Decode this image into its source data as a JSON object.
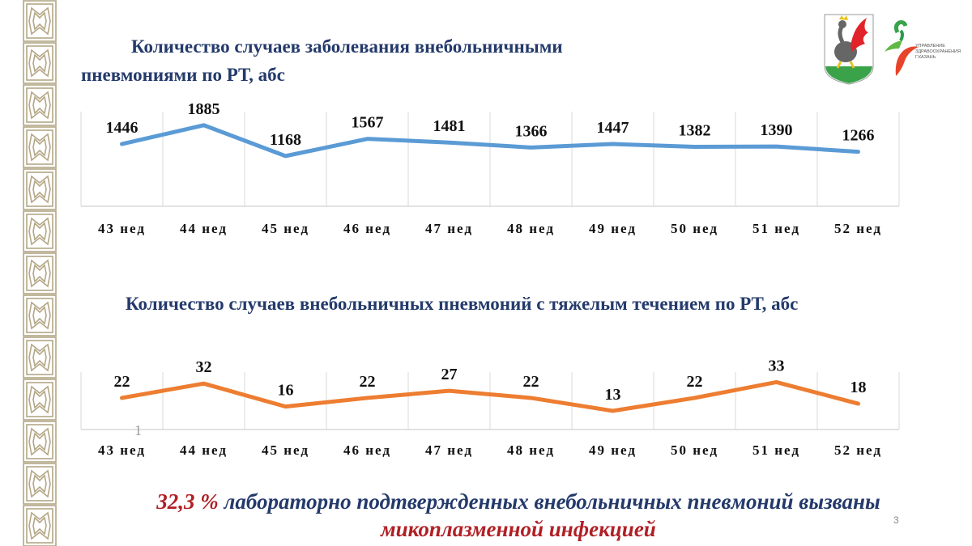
{
  "slide": {
    "title1_line1": "Количество случаев заболевания внебольничными",
    "title1_line2": "пневмониями по РТ, абс",
    "title2": "Количество случаев внебольничных пневмоний с тяжелым течением по РТ, абс",
    "footer_highlight": "32,3 %",
    "footer_text": " лабораторно подтвержденных внебольничных пневмоний вызваны",
    "footer_line2": "микоплазменной инфекцией",
    "page_number": "3",
    "stray_mark": "1",
    "logo_text": "УПРАВЛЕНИЕ ЗДРАВООХРАНЕНИЯ Г.КАЗАНЬ",
    "colors": {
      "title": "#243a6b",
      "accent_red": "#b01f24",
      "ornament": "#b3a685"
    }
  },
  "chart_data": [
    {
      "type": "line",
      "categories": [
        "43 нед",
        "44 нед",
        "45 нед",
        "46 нед",
        "47 нед",
        "48 нед",
        "49 нед",
        "50 нед",
        "51 нед",
        "52 нед"
      ],
      "series": [
        {
          "values": [
            1446,
            1885,
            1168,
            1567,
            1481,
            1366,
            1447,
            1382,
            1390,
            1266
          ],
          "color": "#5b9bd5"
        }
      ],
      "ylim": [
        0,
        2200
      ],
      "data_labels": true,
      "grid": "vertical"
    },
    {
      "type": "line",
      "categories": [
        "43 нед",
        "44 нед",
        "45 нед",
        "46 нед",
        "47 нед",
        "48 нед",
        "49 нед",
        "50 нед",
        "51 нед",
        "52 нед"
      ],
      "series": [
        {
          "values": [
            22,
            32,
            16,
            22,
            27,
            22,
            13,
            22,
            33,
            18
          ],
          "color": "#ed7d31"
        }
      ],
      "ylim": [
        0,
        40
      ],
      "data_labels": true,
      "grid": "vertical"
    }
  ]
}
